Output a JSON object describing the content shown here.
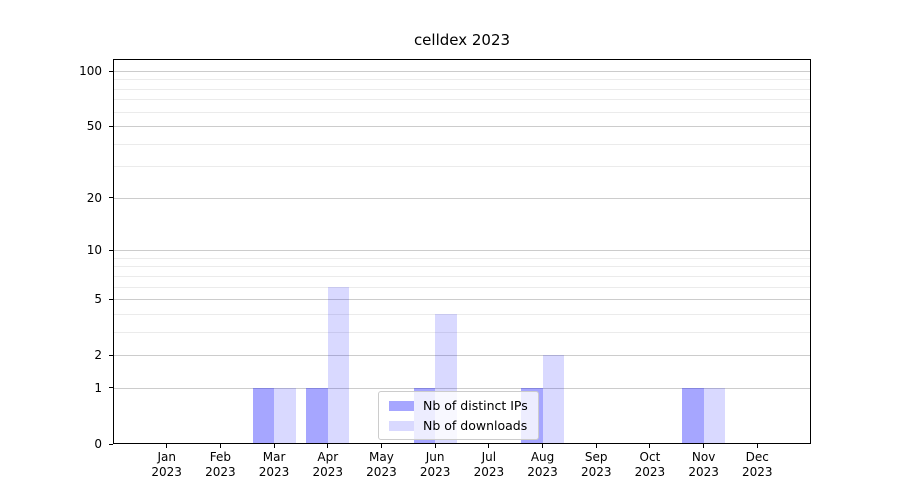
{
  "chart_data": {
    "type": "bar",
    "title": "celldex 2023",
    "categories": [
      "Jan 2023",
      "Feb 2023",
      "Mar 2023",
      "Apr 2023",
      "May 2023",
      "Jun 2023",
      "Jul 2023",
      "Aug 2023",
      "Sep 2023",
      "Oct 2023",
      "Nov 2023",
      "Dec 2023"
    ],
    "series": [
      {
        "name": "Nb of distinct IPs",
        "color": "rgba(0,0,255,0.35)",
        "values": [
          0,
          0,
          1,
          1,
          0,
          1,
          0,
          1,
          0,
          0,
          1,
          0
        ]
      },
      {
        "name": "Nb of downloads",
        "color": "rgba(0,0,255,0.15)",
        "values": [
          0,
          0,
          1,
          6,
          0,
          4,
          0,
          2,
          0,
          0,
          1,
          0
        ]
      }
    ],
    "xlabel": "",
    "ylabel": "",
    "yscale": "log1p",
    "ylim": [
      0,
      118
    ],
    "yticks": [
      0,
      1,
      2,
      5,
      10,
      20,
      50,
      100
    ],
    "minor_gridlines": [
      3,
      4,
      6,
      7,
      8,
      9,
      30,
      40,
      60,
      70,
      80,
      90
    ],
    "grid": "on",
    "legend_position": "lower-center-inside",
    "colors": {
      "axis": "#000000",
      "grid_major": "#cccccc",
      "grid_minor": "#ebebeb",
      "legend_border": "#cccccc",
      "legend_background": "rgba(255,255,255,0.8)"
    }
  }
}
